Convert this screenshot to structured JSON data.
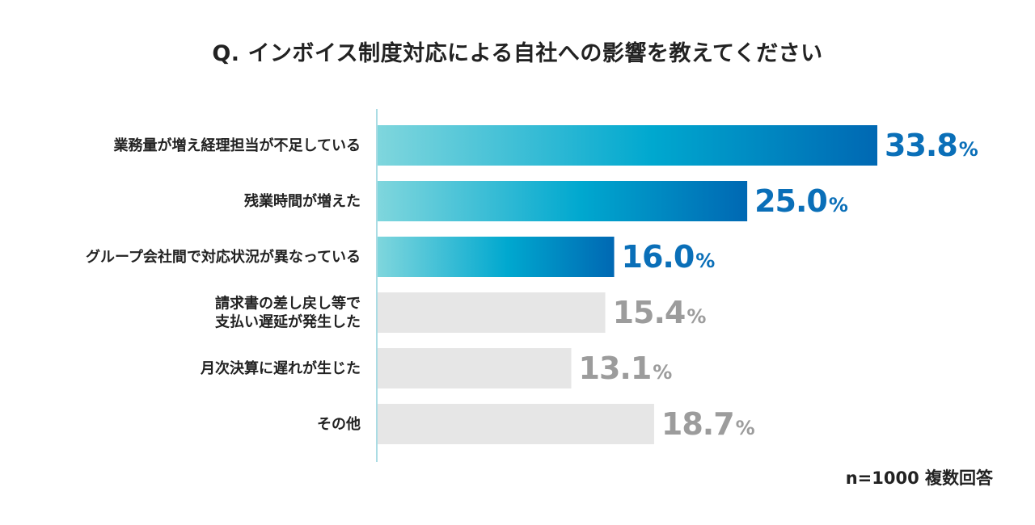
{
  "chart_data": {
    "type": "bar",
    "orientation": "horizontal",
    "title": "Q. インボイス制度対応による自社への影響を教えてください",
    "categories": [
      [
        "業務量が増え経理担当が不足している"
      ],
      [
        "残業時間が増えた"
      ],
      [
        "グループ会社間で対応状況が異なっている"
      ],
      [
        "請求書の差し戻し等で",
        "支払い遅延が発生した"
      ],
      [
        "月次決算に遅れが生じた"
      ],
      [
        "その他"
      ]
    ],
    "values": [
      33.8,
      25.0,
      16.0,
      15.4,
      13.1,
      18.7
    ],
    "value_labels": [
      "33.8",
      "25.0",
      "16.0",
      "15.4",
      "13.1",
      "18.7"
    ],
    "unit": "%",
    "highlighted": [
      true,
      true,
      true,
      false,
      false,
      false
    ],
    "xlim": [
      0,
      33.8
    ],
    "grid": false,
    "colors": {
      "highlight_start": "#7fd6dd",
      "highlight_mid": "#00a8cf",
      "highlight_end": "#0068b3",
      "highlight_text": "#0a6fb8",
      "muted_bar": "#e6e6e6",
      "muted_text": "#9c9c9c",
      "axis": "#8fd0dc"
    }
  },
  "note": "n=1000 複数回答"
}
